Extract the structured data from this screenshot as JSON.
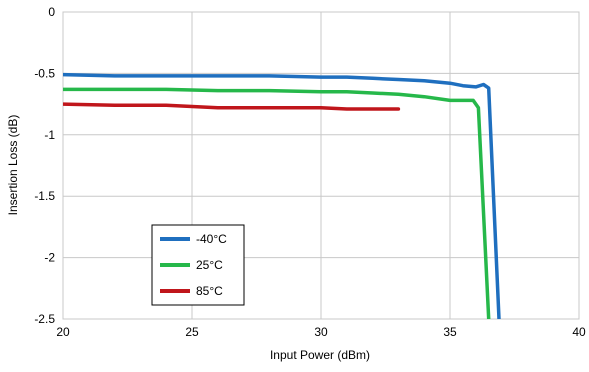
{
  "chart_data": {
    "type": "line",
    "title": "",
    "xlabel": "Input Power (dBm)",
    "ylabel": "Insertion Loss (dB)",
    "xlim": [
      20,
      40
    ],
    "ylim": [
      -2.5,
      0
    ],
    "xticks": [
      20,
      25,
      30,
      35,
      40
    ],
    "yticks": [
      0,
      -0.5,
      -1,
      -1.5,
      -2,
      -2.5
    ],
    "xtick_labels": [
      "20",
      "25",
      "30",
      "35",
      "40"
    ],
    "ytick_labels": [
      "0",
      "-0.5",
      "-1",
      "-1.5",
      "-2",
      "-2.5"
    ],
    "grid": true,
    "legend_position": "bottom-left",
    "series": [
      {
        "name": "-40°C",
        "color": "#1f6fbf",
        "x": [
          20,
          22,
          24,
          26,
          28,
          30,
          31,
          32,
          33,
          34,
          35,
          35.5,
          36,
          36.3,
          36.5,
          36.9
        ],
        "y": [
          -0.51,
          -0.52,
          -0.52,
          -0.52,
          -0.52,
          -0.53,
          -0.53,
          -0.54,
          -0.55,
          -0.56,
          -0.58,
          -0.6,
          -0.61,
          -0.59,
          -0.62,
          -2.5
        ]
      },
      {
        "name": "25°C",
        "color": "#26b84a",
        "x": [
          20,
          22,
          24,
          26,
          28,
          30,
          31,
          32,
          33,
          34,
          35,
          35.6,
          35.9,
          36.1,
          36.5
        ],
        "y": [
          -0.63,
          -0.63,
          -0.63,
          -0.64,
          -0.64,
          -0.65,
          -0.65,
          -0.66,
          -0.67,
          -0.69,
          -0.72,
          -0.72,
          -0.72,
          -0.78,
          -2.5
        ]
      },
      {
        "name": "85°C",
        "color": "#c0161b",
        "x": [
          20,
          22,
          24,
          26,
          28,
          29,
          30,
          31,
          32,
          33
        ],
        "y": [
          -0.75,
          -0.76,
          -0.76,
          -0.78,
          -0.78,
          -0.78,
          -0.78,
          -0.79,
          -0.79,
          -0.79
        ]
      }
    ]
  }
}
